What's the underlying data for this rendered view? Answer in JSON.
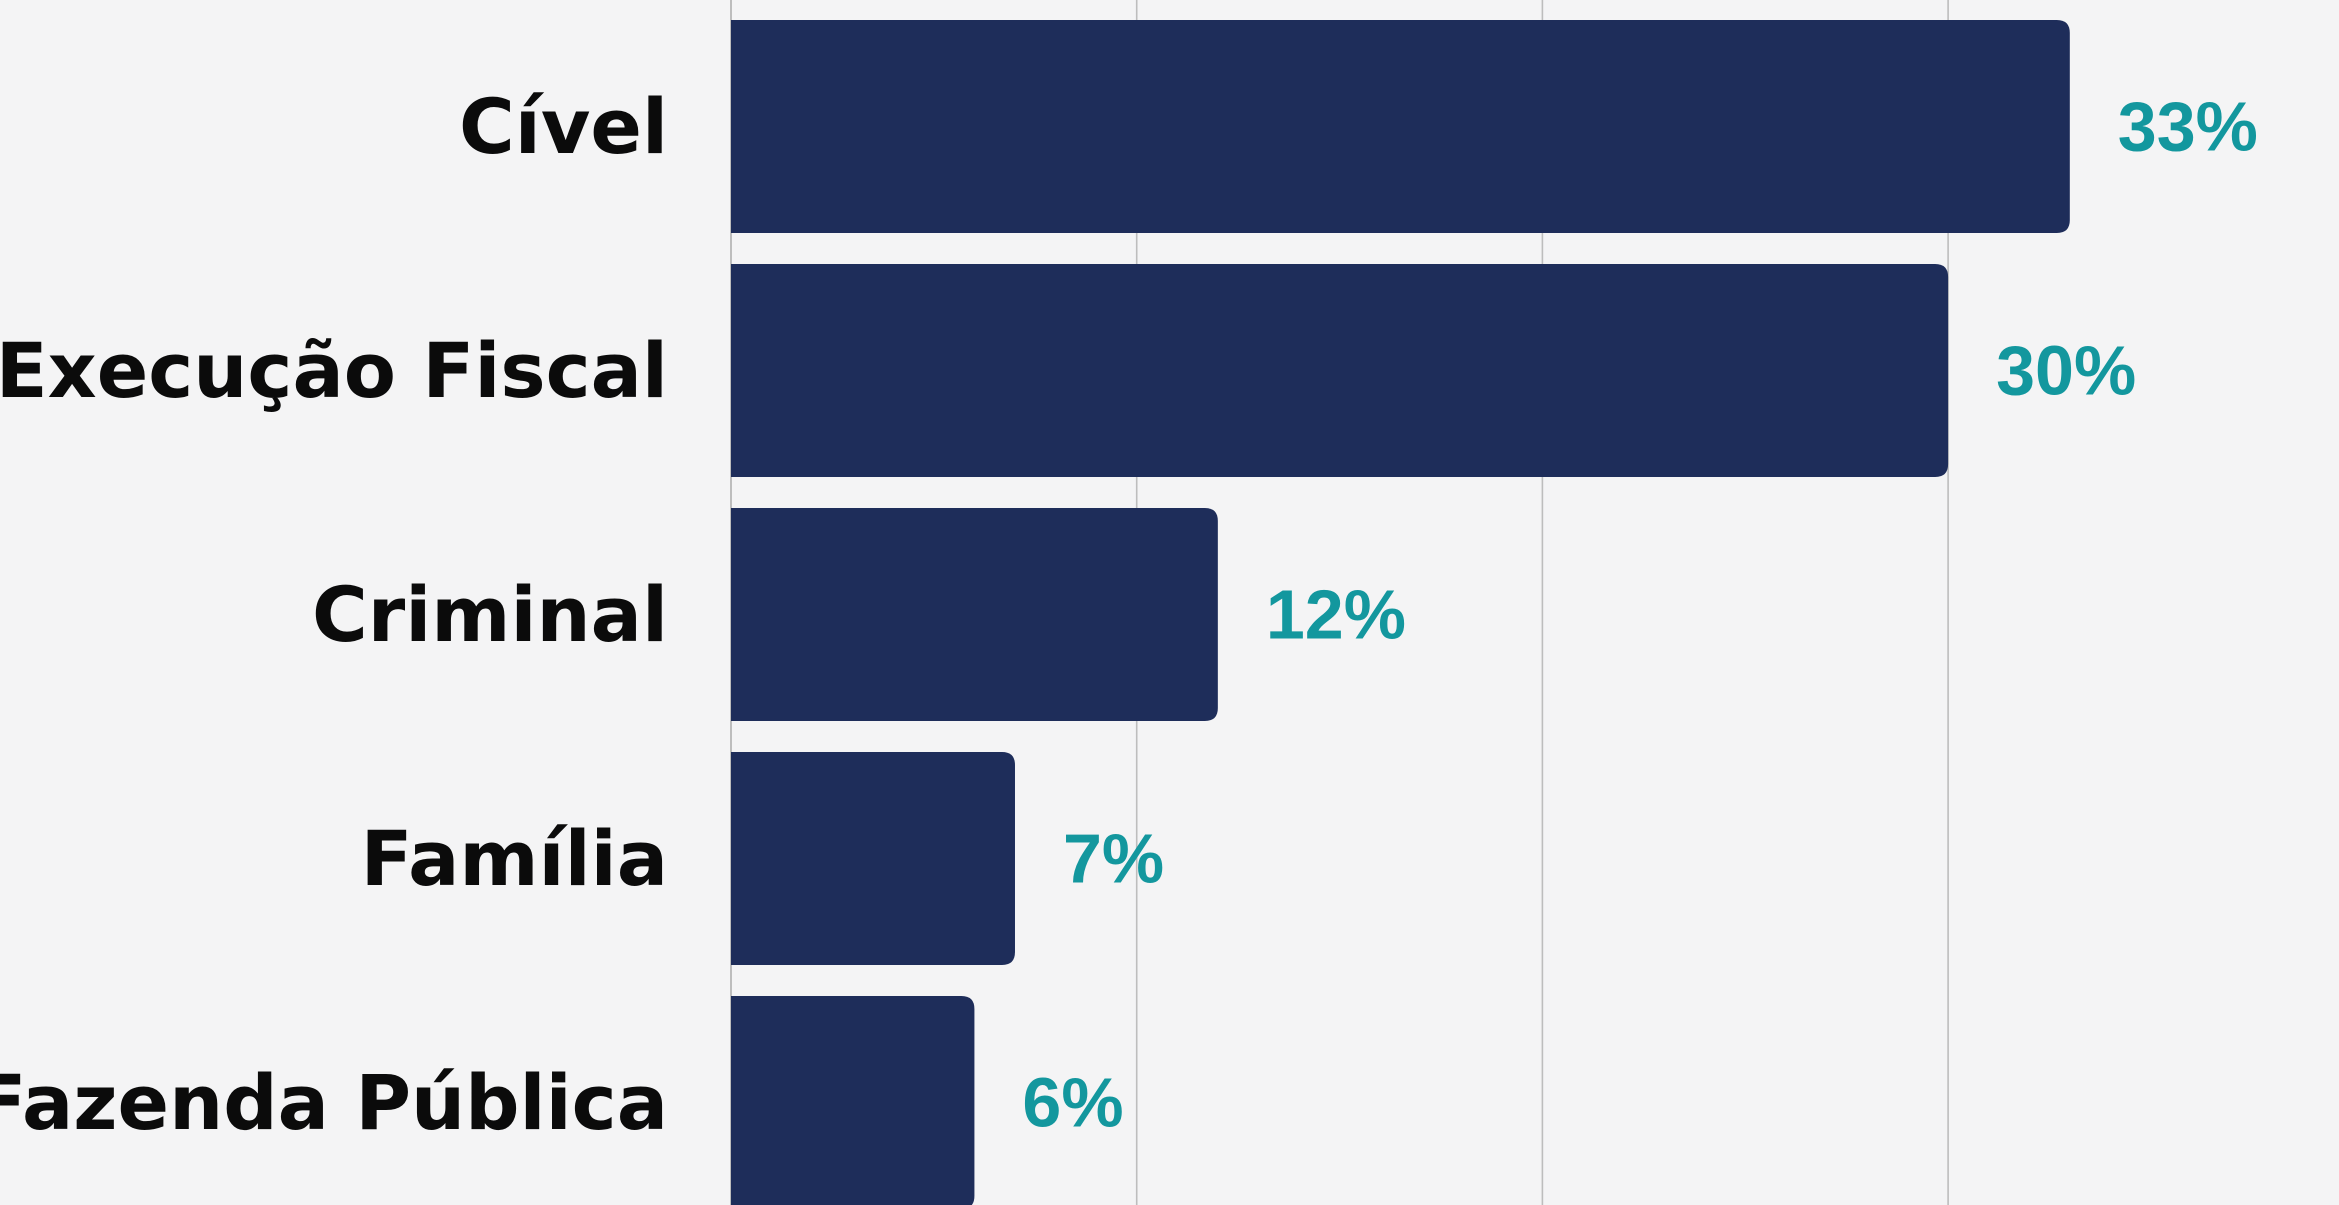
{
  "chart_data": {
    "type": "bar",
    "orientation": "horizontal",
    "categories": [
      "Cível",
      "Execução Fiscal",
      "Criminal",
      "Família",
      "Fazenda Pública"
    ],
    "values": [
      33,
      30,
      12,
      7,
      6
    ],
    "value_labels": [
      "33%",
      "30%",
      "12%",
      "7%",
      "6%"
    ],
    "unit": "%",
    "title": "",
    "xlabel": "",
    "ylabel": "",
    "xlim": [
      0,
      40
    ],
    "gridlines_at": [
      0,
      10,
      20,
      30
    ],
    "grid": true,
    "legend": "none",
    "colors": {
      "bar": "#1e2d5a",
      "value_label": "#13979e",
      "category_label": "#0b0b0b",
      "gridline": "#bdbdbd",
      "background": "#f4f4f5"
    }
  }
}
